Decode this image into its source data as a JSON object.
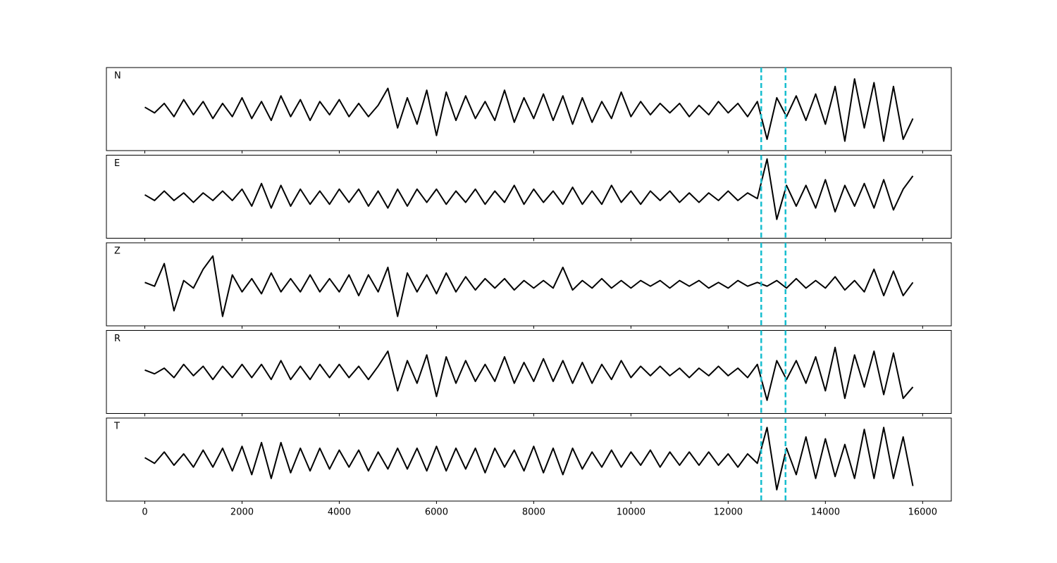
{
  "chart_data": {
    "type": "line",
    "x": [
      0,
      200,
      400,
      600,
      800,
      1000,
      1200,
      1400,
      1600,
      1800,
      2000,
      2200,
      2400,
      2600,
      2800,
      3000,
      3200,
      3400,
      3600,
      3800,
      4000,
      4200,
      4400,
      4600,
      4800,
      5000,
      5200,
      5400,
      5600,
      5800,
      6000,
      6200,
      6400,
      6600,
      6800,
      7000,
      7200,
      7400,
      7600,
      7800,
      8000,
      8200,
      8400,
      8600,
      8800,
      9000,
      9200,
      9400,
      9600,
      9800,
      10000,
      10200,
      10400,
      10600,
      10800,
      11000,
      11200,
      11400,
      11600,
      11800,
      12000,
      12200,
      12400,
      12600,
      12800,
      13000,
      13200,
      13400,
      13600,
      13800,
      14000,
      14200,
      14400,
      14600,
      14800,
      15000,
      15200,
      15400,
      15600,
      15800
    ],
    "series": [
      {
        "name": "N",
        "color": "#000000",
        "values": [
          0.05,
          -0.1,
          0.15,
          -0.2,
          0.25,
          -0.15,
          0.2,
          -0.25,
          0.15,
          -0.2,
          0.3,
          -0.25,
          0.2,
          -0.3,
          0.35,
          -0.2,
          0.25,
          -0.3,
          0.2,
          -0.15,
          0.25,
          -0.2,
          0.15,
          -0.2,
          0.1,
          0.55,
          -0.5,
          0.3,
          -0.4,
          0.5,
          -0.7,
          0.45,
          -0.3,
          0.35,
          -0.25,
          0.2,
          -0.3,
          0.5,
          -0.35,
          0.3,
          -0.25,
          0.4,
          -0.3,
          0.35,
          -0.4,
          0.3,
          -0.35,
          0.2,
          -0.25,
          0.45,
          -0.2,
          0.2,
          -0.15,
          0.15,
          -0.1,
          0.15,
          -0.2,
          0.1,
          -0.15,
          0.2,
          -0.1,
          0.15,
          -0.2,
          0.2,
          -0.8,
          0.3,
          -0.2,
          0.35,
          -0.3,
          0.4,
          -0.4,
          0.6,
          -0.85,
          0.8,
          -0.5,
          0.7,
          -0.85,
          0.6,
          -0.8,
          -0.25
        ]
      },
      {
        "name": "E",
        "color": "#000000",
        "values": [
          0.05,
          -0.1,
          0.15,
          -0.1,
          0.1,
          -0.15,
          0.1,
          -0.1,
          0.15,
          -0.1,
          0.2,
          -0.25,
          0.35,
          -0.3,
          0.3,
          -0.25,
          0.2,
          -0.2,
          0.15,
          -0.2,
          0.2,
          -0.15,
          0.2,
          -0.25,
          0.15,
          -0.3,
          0.2,
          -0.25,
          0.2,
          -0.15,
          0.2,
          -0.2,
          0.15,
          -0.15,
          0.2,
          -0.2,
          0.15,
          -0.15,
          0.3,
          -0.2,
          0.2,
          -0.15,
          0.15,
          -0.2,
          0.25,
          -0.2,
          0.15,
          -0.2,
          0.3,
          -0.15,
          0.15,
          -0.2,
          0.15,
          -0.1,
          0.15,
          -0.15,
          0.1,
          -0.15,
          0.1,
          -0.1,
          0.15,
          -0.1,
          0.1,
          -0.05,
          1.0,
          -0.6,
          0.3,
          -0.25,
          0.3,
          -0.3,
          0.45,
          -0.4,
          0.3,
          -0.25,
          0.35,
          -0.3,
          0.45,
          -0.35,
          0.2,
          0.55
        ]
      },
      {
        "name": "Z",
        "color": "#000000",
        "values": [
          0.05,
          -0.05,
          0.55,
          -0.7,
          0.1,
          -0.1,
          0.4,
          0.75,
          -0.85,
          0.25,
          -0.2,
          0.15,
          -0.25,
          0.3,
          -0.2,
          0.15,
          -0.2,
          0.25,
          -0.2,
          0.15,
          -0.2,
          0.25,
          -0.3,
          0.25,
          -0.2,
          0.45,
          -0.85,
          0.3,
          -0.2,
          0.25,
          -0.25,
          0.3,
          -0.2,
          0.2,
          -0.15,
          0.15,
          -0.1,
          0.15,
          -0.15,
          0.1,
          -0.1,
          0.1,
          -0.1,
          0.45,
          -0.15,
          0.1,
          -0.1,
          0.15,
          -0.1,
          0.1,
          -0.1,
          0.1,
          -0.05,
          0.1,
          -0.1,
          0.1,
          -0.05,
          0.1,
          -0.1,
          0.05,
          -0.1,
          0.1,
          -0.05,
          0.05,
          -0.05,
          0.1,
          -0.1,
          0.15,
          -0.1,
          0.1,
          -0.1,
          0.2,
          -0.15,
          0.1,
          -0.2,
          0.4,
          -0.3,
          0.35,
          -0.3,
          0.05
        ]
      },
      {
        "name": "R",
        "color": "#000000",
        "values": [
          0.05,
          -0.05,
          0.1,
          -0.15,
          0.2,
          -0.1,
          0.15,
          -0.2,
          0.15,
          -0.15,
          0.2,
          -0.15,
          0.2,
          -0.2,
          0.3,
          -0.2,
          0.15,
          -0.2,
          0.2,
          -0.15,
          0.2,
          -0.15,
          0.15,
          -0.2,
          0.15,
          0.55,
          -0.5,
          0.3,
          -0.3,
          0.45,
          -0.65,
          0.4,
          -0.3,
          0.3,
          -0.25,
          0.2,
          -0.25,
          0.4,
          -0.3,
          0.25,
          -0.25,
          0.35,
          -0.25,
          0.3,
          -0.3,
          0.25,
          -0.3,
          0.2,
          -0.2,
          0.3,
          -0.15,
          0.15,
          -0.1,
          0.15,
          -0.1,
          0.1,
          -0.15,
          0.1,
          -0.1,
          0.15,
          -0.1,
          0.1,
          -0.15,
          0.2,
          -0.75,
          0.3,
          -0.2,
          0.3,
          -0.3,
          0.4,
          -0.5,
          0.65,
          -0.7,
          0.45,
          -0.4,
          0.55,
          -0.6,
          0.5,
          -0.7,
          -0.4
        ]
      },
      {
        "name": "T",
        "color": "#000000",
        "values": [
          0.05,
          -0.1,
          0.2,
          -0.15,
          0.15,
          -0.2,
          0.25,
          -0.2,
          0.3,
          -0.3,
          0.35,
          -0.4,
          0.45,
          -0.5,
          0.45,
          -0.35,
          0.3,
          -0.3,
          0.3,
          -0.25,
          0.25,
          -0.2,
          0.25,
          -0.3,
          0.2,
          -0.25,
          0.3,
          -0.25,
          0.3,
          -0.3,
          0.35,
          -0.3,
          0.3,
          -0.25,
          0.3,
          -0.35,
          0.3,
          -0.2,
          0.25,
          -0.3,
          0.35,
          -0.35,
          0.3,
          -0.4,
          0.3,
          -0.25,
          0.2,
          -0.2,
          0.25,
          -0.2,
          0.2,
          -0.15,
          0.25,
          -0.2,
          0.2,
          -0.15,
          0.2,
          -0.15,
          0.2,
          -0.15,
          0.15,
          -0.2,
          0.15,
          -0.1,
          0.85,
          -0.8,
          0.3,
          -0.4,
          0.6,
          -0.5,
          0.55,
          -0.45,
          0.4,
          -0.5,
          0.8,
          -0.5,
          0.85,
          -0.5,
          0.6,
          -0.7
        ]
      }
    ],
    "xlim": [
      -790,
      16590
    ],
    "xticks": [
      0,
      2000,
      4000,
      6000,
      8000,
      10000,
      12000,
      14000,
      16000
    ],
    "ylim": [
      -1.1,
      1.1
    ],
    "vlines": [
      12680,
      13180
    ],
    "vline_color": "#17becf"
  }
}
